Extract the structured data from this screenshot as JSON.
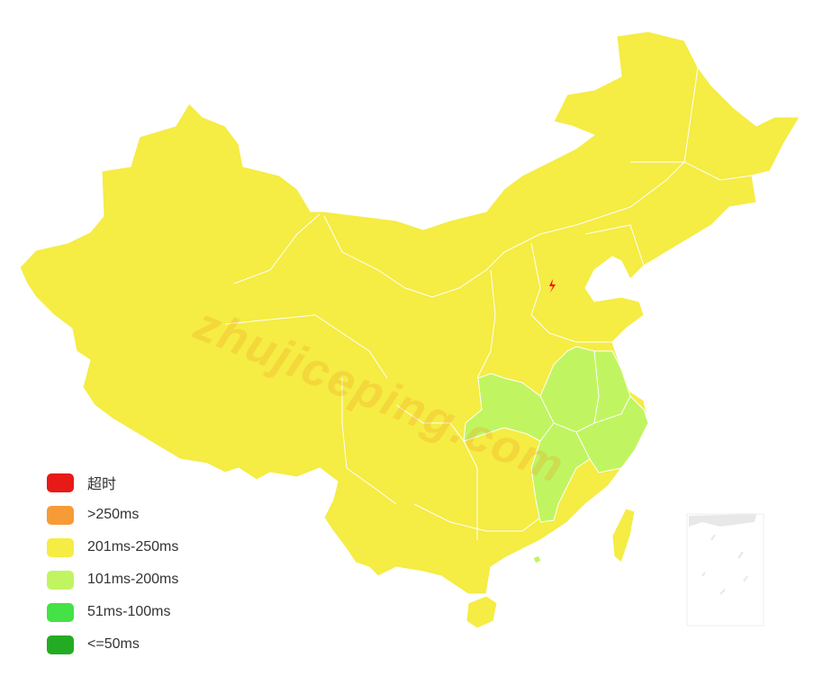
{
  "legend": {
    "items": [
      {
        "label": "超时",
        "color": "#e81a18"
      },
      {
        "label": ">250ms",
        "color": "#f79b36"
      },
      {
        "label": "201ms-250ms",
        "color": "#f5ec44"
      },
      {
        "label": "101ms-200ms",
        "color": "#c0f561"
      },
      {
        "label": "51ms-100ms",
        "color": "#44e244"
      },
      {
        "label": "<=50ms",
        "color": "#23ac23"
      }
    ]
  },
  "map": {
    "default_level": "201ms-250ms",
    "regions_101_200ms": [
      "Hubei",
      "Anhui",
      "Jiangsu",
      "Shanghai",
      "Zhejiang",
      "Jiangxi"
    ],
    "marker_icon": "lightning-icon",
    "marker_color": "#ff0000"
  },
  "watermark": "zhujiceping.com"
}
